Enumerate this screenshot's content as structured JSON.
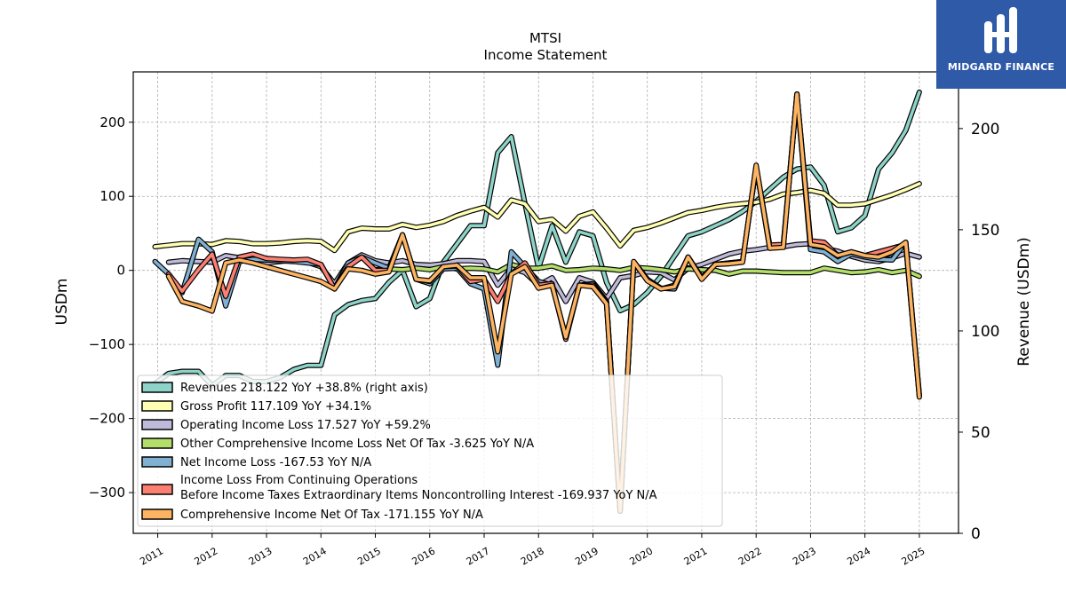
{
  "brand": {
    "name": "MIDGARD FINANCE",
    "color": "#2f5aa8"
  },
  "chart_data": {
    "type": "line",
    "title": "MTSI",
    "subtitle": "Income Statement",
    "ylabel": "USDm",
    "ylabel_right": "Revenue (USDm)",
    "ylim": [
      -355,
      268
    ],
    "ylim_right": [
      0,
      228
    ],
    "yticks": [
      200,
      100,
      0,
      -100,
      -200,
      -300
    ],
    "yticks_right": [
      200,
      150,
      100,
      50,
      0
    ],
    "xlim": [
      2010.55,
      2025.72
    ],
    "xticks": [
      "2011",
      "2012",
      "2013",
      "2014",
      "2015",
      "2016",
      "2017",
      "2018",
      "2019",
      "2020",
      "2021",
      "2022",
      "2023",
      "2024",
      "2025"
    ],
    "grid": true,
    "legend_position": "lower-left",
    "series": [
      {
        "name": "Revenues",
        "legend": "Revenues  218.122 YoY +38.8% (right axis)",
        "axis": "right",
        "color": "#8dd3c7",
        "x": [
          2010.95,
          2011.2,
          2011.45,
          2011.75,
          2012.0,
          2012.25,
          2012.5,
          2012.75,
          2013.0,
          2013.25,
          2013.5,
          2013.75,
          2014.0,
          2014.25,
          2014.5,
          2014.75,
          2015.0,
          2015.25,
          2015.5,
          2015.75,
          2016.0,
          2016.25,
          2016.5,
          2016.75,
          2017.0,
          2017.25,
          2017.5,
          2017.75,
          2018.0,
          2018.25,
          2018.5,
          2018.75,
          2019.0,
          2019.25,
          2019.5,
          2019.75,
          2020.0,
          2020.25,
          2020.5,
          2020.75,
          2021.0,
          2021.25,
          2021.5,
          2021.75,
          2022.0,
          2022.25,
          2022.5,
          2022.75,
          2023.0,
          2023.25,
          2023.5,
          2023.75,
          2024.0,
          2024.25,
          2024.5,
          2024.75,
          2025.0
        ],
        "values": [
          74,
          79,
          80,
          80,
          73,
          78,
          78,
          75,
          75,
          77,
          81,
          83,
          83,
          108,
          113,
          115,
          116,
          124,
          130,
          112,
          116,
          134,
          143,
          152,
          152,
          188,
          196,
          163,
          131,
          152,
          134,
          149,
          147,
          124,
          110,
          113,
          119,
          127,
          137,
          147,
          149,
          152,
          155,
          159,
          164,
          170,
          176,
          180,
          181,
          172,
          149,
          151,
          157,
          180,
          188,
          199,
          218
        ]
      },
      {
        "name": "Gross Profit",
        "legend": "Gross Profit  117.109 YoY +34.1%",
        "axis": "left",
        "color": "#ffffb3",
        "x": [
          2010.95,
          2011.2,
          2011.45,
          2011.75,
          2012.0,
          2012.25,
          2012.5,
          2012.75,
          2013.0,
          2013.25,
          2013.5,
          2013.75,
          2014.0,
          2014.25,
          2014.5,
          2014.75,
          2015.0,
          2015.25,
          2015.5,
          2015.75,
          2016.0,
          2016.25,
          2016.5,
          2016.75,
          2017.0,
          2017.25,
          2017.5,
          2017.75,
          2018.0,
          2018.25,
          2018.5,
          2018.75,
          2019.0,
          2019.25,
          2019.5,
          2019.75,
          2020.0,
          2020.25,
          2020.5,
          2020.75,
          2021.0,
          2021.25,
          2021.5,
          2021.75,
          2022.0,
          2022.25,
          2022.5,
          2022.75,
          2023.0,
          2023.25,
          2023.5,
          2023.75,
          2024.0,
          2024.25,
          2024.5,
          2024.75,
          2025.0
        ],
        "values": [
          32,
          34,
          36,
          36,
          35,
          40,
          39,
          36,
          36,
          37,
          39,
          40,
          39,
          27,
          52,
          57,
          56,
          56,
          62,
          58,
          61,
          66,
          74,
          80,
          85,
          72,
          95,
          90,
          66,
          69,
          53,
          73,
          79,
          57,
          33,
          54,
          58,
          64,
          71,
          78,
          81,
          85,
          88,
          90,
          92,
          96,
          103,
          105,
          108,
          104,
          88,
          88,
          90,
          96,
          102,
          109,
          117
        ]
      },
      {
        "name": "Operating Income Loss",
        "legend": "Operating Income Loss  17.527 YoY +59.2%",
        "axis": "left",
        "color": "#bebada",
        "x": [
          2011.2,
          2011.45,
          2011.75,
          2012.0,
          2012.25,
          2012.5,
          2012.75,
          2013.0,
          2013.25,
          2013.5,
          2013.75,
          2014.0,
          2014.25,
          2014.5,
          2014.75,
          2015.0,
          2015.25,
          2015.5,
          2015.75,
          2016.0,
          2016.25,
          2016.5,
          2016.75,
          2017.0,
          2017.25,
          2017.5,
          2017.75,
          2018.0,
          2018.25,
          2018.5,
          2018.75,
          2019.0,
          2019.25,
          2019.5,
          2019.75,
          2020.0,
          2020.25,
          2020.5,
          2020.75,
          2021.0,
          2021.25,
          2021.5,
          2021.75,
          2022.0,
          2022.25,
          2022.5,
          2022.75,
          2023.0,
          2023.25,
          2023.5,
          2023.75,
          2024.0,
          2024.25,
          2024.5,
          2024.75,
          2025.0
        ],
        "values": [
          11,
          13,
          12,
          11,
          20,
          17,
          14,
          10,
          12,
          14,
          11,
          5,
          -18,
          10,
          21,
          13,
          10,
          13,
          8,
          7,
          9,
          13,
          13,
          12,
          -20,
          3,
          -3,
          -20,
          -10,
          -42,
          -10,
          -16,
          -38,
          -10,
          -7,
          -2,
          -3,
          -13,
          3,
          8,
          15,
          22,
          26,
          28,
          31,
          32,
          35,
          36,
          30,
          26,
          19,
          14,
          12,
          17,
          23,
          18
        ]
      },
      {
        "name": "Other Comprehensive Income Loss Net Of Tax",
        "legend": "Other Comprehensive Income Loss Net Of Tax  -3.625 YoY N/A",
        "axis": "left",
        "color": "#b3de69",
        "x": [
          2015.0,
          2015.25,
          2015.5,
          2015.75,
          2016.0,
          2016.25,
          2016.5,
          2016.75,
          2017.0,
          2017.25,
          2017.5,
          2017.75,
          2018.0,
          2018.25,
          2018.5,
          2018.75,
          2019.0,
          2019.25,
          2019.5,
          2019.75,
          2020.0,
          2020.25,
          2020.5,
          2020.75,
          2021.0,
          2021.25,
          2021.5,
          2021.75,
          2022.0,
          2022.25,
          2022.5,
          2022.75,
          2023.0,
          2023.25,
          2023.5,
          2023.75,
          2024.0,
          2024.25,
          2024.5,
          2024.75,
          2025.0
        ],
        "values": [
          1,
          2,
          1,
          3,
          1,
          5,
          2,
          3,
          2,
          -2,
          8,
          3,
          3,
          6,
          0,
          1,
          3,
          2,
          0,
          4,
          3,
          1,
          -2,
          2,
          1,
          0,
          -5,
          -1,
          -1,
          -2,
          -3,
          -3,
          -3,
          3,
          0,
          -3,
          -2,
          1,
          -3,
          0,
          -8
        ]
      },
      {
        "name": "Net Income Loss",
        "legend": "Net Income Loss  -167.53 YoY N/A",
        "axis": "left",
        "color": "#80b1d3",
        "x": [
          2010.95,
          2011.2,
          2011.45,
          2011.75,
          2012.0,
          2012.25,
          2012.5,
          2012.75,
          2013.0,
          2013.25,
          2013.5,
          2013.75,
          2014.0,
          2014.25,
          2014.5,
          2014.75,
          2015.0,
          2015.25,
          2015.5,
          2015.75,
          2016.0,
          2016.25,
          2016.5,
          2016.75,
          2017.0,
          2017.25,
          2017.5,
          2017.75,
          2018.0,
          2018.25,
          2018.5,
          2018.75,
          2019.0,
          2019.25,
          2019.5,
          2019.75,
          2020.0,
          2020.25,
          2020.5,
          2020.75,
          2021.0,
          2021.25,
          2021.5,
          2021.75,
          2022.0,
          2022.25,
          2022.5,
          2022.75,
          2023.0,
          2023.25,
          2023.5,
          2023.75,
          2024.0,
          2024.25,
          2024.5,
          2024.75,
          2025.0
        ],
        "values": [
          12,
          -5,
          -30,
          42,
          25,
          -48,
          12,
          15,
          14,
          13,
          12,
          10,
          8,
          -25,
          10,
          18,
          10,
          3,
          48,
          -12,
          -18,
          2,
          3,
          -18,
          -25,
          -128,
          25,
          5,
          -15,
          -20,
          -90,
          -20,
          -18,
          -42,
          -325,
          10,
          -12,
          -24,
          -25,
          18,
          -10,
          8,
          10,
          12,
          140,
          30,
          32,
          238,
          28,
          25,
          12,
          22,
          18,
          15,
          14,
          38,
          -168
        ]
      },
      {
        "name": "Income Loss From Continuing Operations Before Income Taxes Extraordinary Items Noncontrolling Interest",
        "legend_line1": "Income Loss From Continuing Operations",
        "legend_line2": "Before Income Taxes Extraordinary Items Noncontrolling Interest  -169.937 YoY N/A",
        "axis": "left",
        "color": "#fb8072",
        "x": [
          2011.2,
          2011.45,
          2011.75,
          2012.0,
          2012.25,
          2012.5,
          2012.75,
          2013.0,
          2013.25,
          2013.5,
          2013.75,
          2014.0,
          2014.25,
          2014.5,
          2014.75,
          2015.0,
          2015.25,
          2015.5,
          2015.75,
          2016.0,
          2016.25,
          2016.5,
          2016.75,
          2017.0,
          2017.25,
          2017.5,
          2017.75,
          2018.0,
          2018.25,
          2018.5,
          2018.75,
          2019.0,
          2019.25,
          2019.5,
          2019.75,
          2020.0,
          2020.25,
          2020.5,
          2020.75,
          2021.0,
          2021.25,
          2021.5,
          2021.75,
          2022.0,
          2022.25,
          2022.5,
          2022.75,
          2023.0,
          2023.25,
          2023.5,
          2023.75,
          2024.0,
          2024.25,
          2024.5,
          2024.75,
          2025.0
        ],
        "values": [
          -5,
          -28,
          1,
          22,
          -35,
          18,
          22,
          16,
          15,
          14,
          15,
          8,
          -25,
          5,
          18,
          0,
          0,
          48,
          -12,
          -15,
          5,
          6,
          -15,
          -12,
          -42,
          -5,
          10,
          -20,
          -18,
          -93,
          -20,
          -20,
          -43,
          -325,
          12,
          -12,
          -25,
          -20,
          18,
          -10,
          8,
          10,
          12,
          140,
          34,
          35,
          238,
          40,
          38,
          20,
          25,
          20,
          25,
          30,
          35,
          -170
        ]
      },
      {
        "name": "Comprehensive Income Net Of Tax",
        "legend": "Comprehensive Income Net Of Tax  -171.155 YoY N/A",
        "axis": "left",
        "color": "#fdb462",
        "x": [
          2011.2,
          2011.45,
          2011.75,
          2012.0,
          2012.25,
          2012.5,
          2012.75,
          2013.0,
          2013.25,
          2013.5,
          2013.75,
          2014.0,
          2014.25,
          2014.5,
          2014.75,
          2015.0,
          2015.25,
          2015.5,
          2015.75,
          2016.0,
          2016.25,
          2016.5,
          2016.75,
          2017.0,
          2017.25,
          2017.5,
          2017.75,
          2018.0,
          2018.25,
          2018.5,
          2018.75,
          2019.0,
          2019.25,
          2019.5,
          2019.75,
          2020.0,
          2020.25,
          2020.5,
          2020.75,
          2021.0,
          2021.25,
          2021.5,
          2021.75,
          2022.0,
          2022.25,
          2022.5,
          2022.75,
          2023.0,
          2023.25,
          2023.5,
          2023.75,
          2024.0,
          2024.25,
          2024.5,
          2024.75,
          2025.0
        ],
        "values": [
          -8,
          -42,
          -48,
          -55,
          10,
          14,
          10,
          5,
          0,
          -5,
          -10,
          -15,
          -25,
          2,
          0,
          -5,
          -2,
          48,
          -12,
          -14,
          5,
          7,
          -10,
          -10,
          -110,
          -5,
          5,
          -24,
          -20,
          -90,
          -20,
          -22,
          -45,
          -325,
          12,
          -14,
          -25,
          -22,
          18,
          -12,
          8,
          9,
          11,
          142,
          30,
          31,
          238,
          35,
          32,
          20,
          25,
          20,
          18,
          25,
          38,
          -171
        ]
      }
    ]
  }
}
